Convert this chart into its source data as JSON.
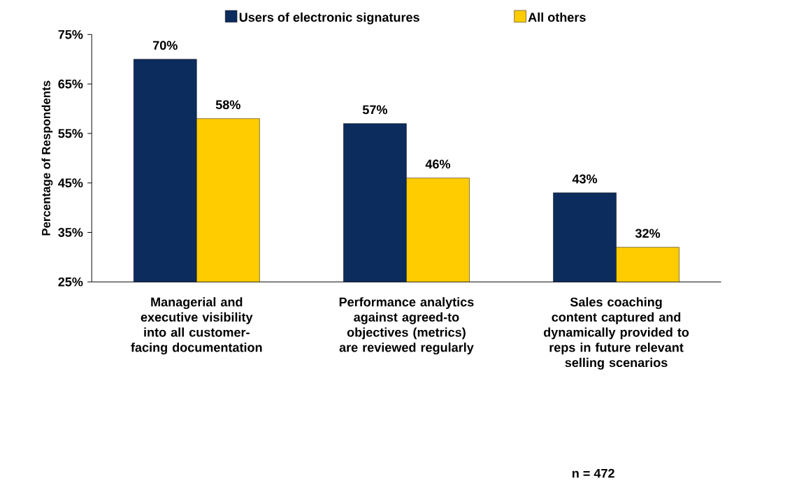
{
  "chart_data": {
    "type": "bar",
    "ylabel": "Percentage of Respondents",
    "categories": [
      "Managerial and executive visibility into all customer-facing documentation",
      "Performance analytics against agreed-to objectives (metrics) are reviewed regularly",
      "Sales coaching content captured and dynamically provided to reps in future relevant selling scenarios"
    ],
    "series": [
      {
        "name": "Users of electronic signatures",
        "color": "#0d2c5e",
        "values": [
          70,
          57,
          43
        ],
        "value_labels": [
          "70%",
          "57%",
          "43%"
        ]
      },
      {
        "name": "All others",
        "color": "#ffcc00",
        "values": [
          58,
          46,
          32
        ],
        "value_labels": [
          "58%",
          "46%",
          "32%"
        ]
      }
    ],
    "ylim": [
      25,
      75
    ],
    "yticks": [
      {
        "value": 25,
        "label": "25%"
      },
      {
        "value": 35,
        "label": "35%"
      },
      {
        "value": 45,
        "label": "45%"
      },
      {
        "value": 55,
        "label": "55%"
      },
      {
        "value": 65,
        "label": "65%"
      },
      {
        "value": 75,
        "label": "75%"
      }
    ],
    "legend": "top",
    "grid": false,
    "annotations": [
      "n = 472"
    ]
  }
}
